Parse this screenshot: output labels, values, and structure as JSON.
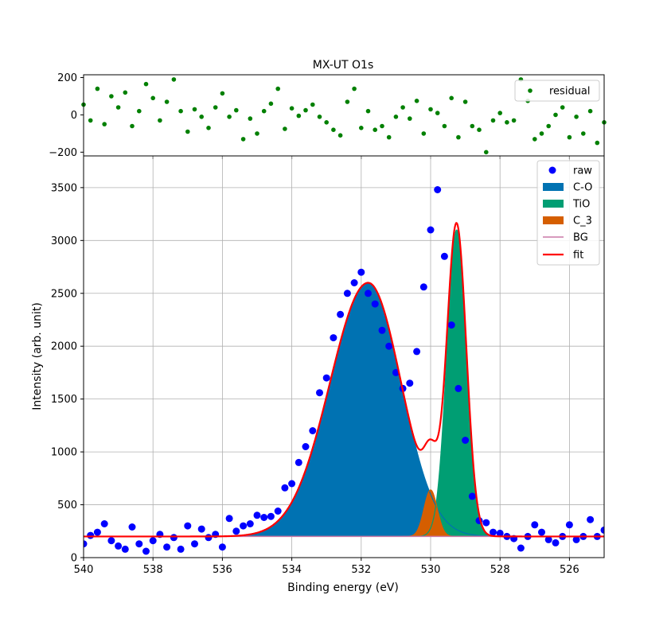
{
  "chart_data": [
    {
      "type": "scatter",
      "panel": "residual",
      "title": "MX-UT O1s",
      "xlim": [
        540,
        525
      ],
      "ylim": [
        -220,
        215
      ],
      "yticks": [
        -200,
        0,
        200
      ],
      "ytick_labels": [
        "−200",
        "0",
        "200"
      ],
      "grid": false,
      "legend_position": "top-right",
      "colors": {
        "residual": "#008000"
      },
      "series": [
        {
          "name": "residual",
          "x": [
            540.0,
            539.8,
            539.6,
            539.4,
            539.2,
            539.0,
            538.8,
            538.6,
            538.4,
            538.2,
            538.0,
            537.8,
            537.6,
            537.4,
            537.2,
            537.0,
            536.8,
            536.6,
            536.4,
            536.2,
            536.0,
            535.8,
            535.6,
            535.4,
            535.2,
            535.0,
            534.8,
            534.6,
            534.4,
            534.2,
            534.0,
            533.8,
            533.6,
            533.4,
            533.2,
            533.0,
            532.8,
            532.6,
            532.4,
            532.2,
            532.0,
            531.8,
            531.6,
            531.4,
            531.2,
            531.0,
            530.8,
            530.6,
            530.4,
            530.2,
            530.0,
            529.8,
            529.6,
            529.4,
            529.2,
            529.0,
            528.8,
            528.6,
            528.4,
            528.2,
            528.0,
            527.8,
            527.6,
            527.4,
            527.2,
            527.0,
            526.8,
            526.6,
            526.4,
            526.2,
            526.0,
            525.8,
            525.6,
            525.4,
            525.2,
            525.0
          ],
          "y": [
            55,
            -30,
            140,
            -50,
            100,
            40,
            120,
            -60,
            20,
            165,
            90,
            -30,
            70,
            190,
            20,
            -90,
            30,
            -10,
            -70,
            40,
            115,
            -10,
            25,
            -130,
            -20,
            -100,
            20,
            60,
            140,
            -75,
            35,
            -5,
            25,
            55,
            -10,
            -40,
            -80,
            -110,
            70,
            140,
            -70,
            20,
            -80,
            -60,
            -120,
            -10,
            40,
            -20,
            75,
            -100,
            30,
            10,
            -60,
            90,
            -120,
            70,
            -60,
            -80,
            -200,
            -30,
            10,
            -40,
            -30,
            190,
            75,
            -130,
            -100,
            -60,
            0,
            40,
            -120,
            -10,
            -100,
            20,
            -150,
            -40
          ]
        }
      ]
    },
    {
      "type": "area",
      "panel": "main",
      "xlabel": "Binding energy (eV)",
      "ylabel": "Intensity (arb. unit)",
      "xlim": [
        540,
        525
      ],
      "ylim": [
        0,
        3800
      ],
      "xticks": [
        540,
        538,
        536,
        534,
        532,
        530,
        528,
        526
      ],
      "yticks": [
        0,
        500,
        1000,
        1500,
        2000,
        2500,
        3000,
        3500
      ],
      "grid": true,
      "legend_position": "top-right",
      "colors": {
        "raw": "#0000ff",
        "C-O": "#0072b2",
        "TiO": "#009e73",
        "C_3": "#d55e00",
        "BG": "#cc79a7",
        "fit": "#ff0000"
      },
      "background": 200,
      "components": [
        {
          "name": "C-O",
          "center": 531.8,
          "amplitude": 2400,
          "sigma_low_be_side": 0.95,
          "sigma_high_be_side": 1.1
        },
        {
          "name": "TiO",
          "center": 529.25,
          "amplitude": 2900,
          "sigma": 0.28
        },
        {
          "name": "C_3",
          "center": 530.0,
          "amplitude": 440,
          "sigma": 0.19
        }
      ],
      "series": [
        {
          "name": "raw",
          "style": "points"
        },
        {
          "name": "C-O",
          "style": "filled-area"
        },
        {
          "name": "TiO",
          "style": "filled-area"
        },
        {
          "name": "C_3",
          "style": "filled-area"
        },
        {
          "name": "BG",
          "style": "line"
        },
        {
          "name": "fit",
          "style": "line"
        }
      ],
      "raw_points": {
        "x": [
          540.0,
          539.8,
          539.6,
          539.4,
          539.2,
          539.0,
          538.8,
          538.6,
          538.4,
          538.2,
          538.0,
          537.8,
          537.6,
          537.4,
          537.2,
          537.0,
          536.8,
          536.6,
          536.4,
          536.2,
          536.0,
          535.8,
          535.6,
          535.4,
          535.2,
          535.0,
          534.8,
          534.6,
          534.4,
          534.2,
          534.0,
          533.8,
          533.6,
          533.4,
          533.2,
          533.0,
          532.8,
          532.6,
          532.4,
          532.2,
          532.0,
          531.8,
          531.6,
          531.4,
          531.2,
          531.0,
          530.8,
          530.6,
          530.4,
          530.2,
          530.0,
          529.8,
          529.6,
          529.4,
          529.2,
          529.0,
          528.8,
          528.6,
          528.4,
          528.2,
          528.0,
          527.8,
          527.6,
          527.4,
          527.2,
          527.0,
          526.8,
          526.6,
          526.4,
          526.2,
          526.0,
          525.8,
          525.6,
          525.4,
          525.2,
          525.0
        ],
        "y": [
          130,
          210,
          240,
          320,
          160,
          110,
          80,
          290,
          130,
          60,
          160,
          220,
          100,
          190,
          80,
          300,
          130,
          270,
          190,
          220,
          100,
          370,
          250,
          300,
          320,
          400,
          380,
          390,
          440,
          660,
          700,
          900,
          1050,
          1200,
          1560,
          1700,
          2080,
          2300,
          2500,
          2600,
          2700,
          2500,
          2400,
          2150,
          2000,
          1750,
          1600,
          1650,
          1950,
          2560,
          3100,
          3480,
          2850,
          2200,
          1600,
          1110,
          580,
          350,
          330,
          240,
          230,
          200,
          180,
          90,
          200,
          310,
          240,
          170,
          140,
          200,
          310,
          170,
          200,
          360,
          200,
          260
        ]
      }
    }
  ]
}
